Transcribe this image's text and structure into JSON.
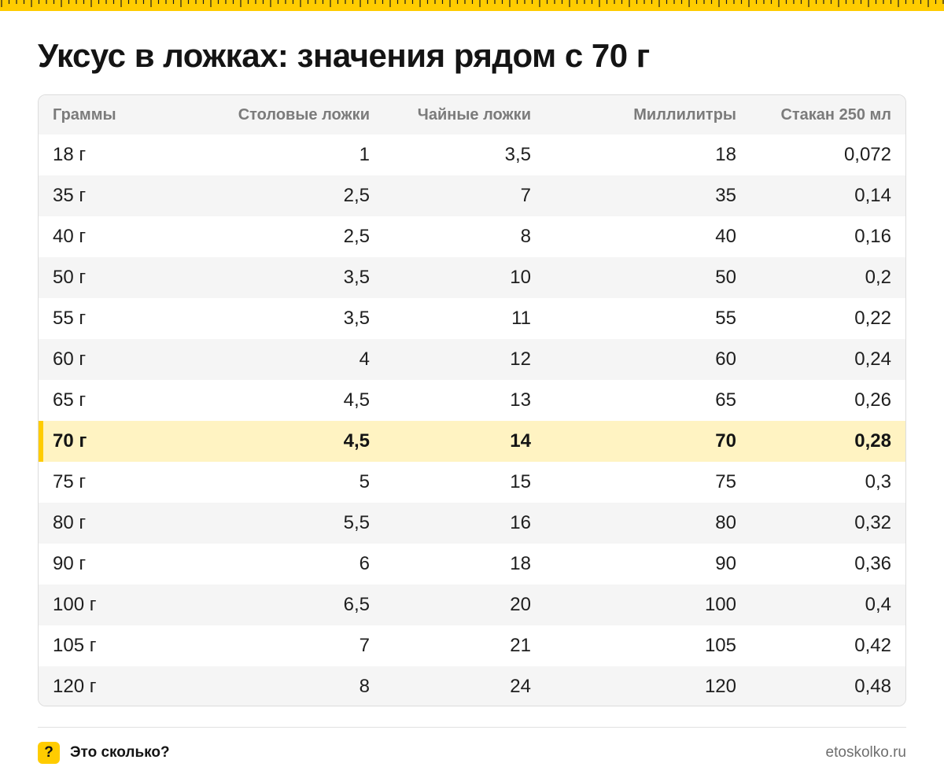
{
  "brand_color": "#ffcc00",
  "highlight_color": "#fff3c2",
  "title": "Уксус в ложках: значения рядом с 70 г",
  "chart_data": {
    "type": "table",
    "columns": [
      "Граммы",
      "Столовые ложки",
      "Чайные ложки",
      "Миллилитры",
      "Стакан 250 мл"
    ],
    "rows": [
      [
        "18 г",
        "1",
        "3,5",
        "18",
        "0,072"
      ],
      [
        "35 г",
        "2,5",
        "7",
        "35",
        "0,14"
      ],
      [
        "40 г",
        "2,5",
        "8",
        "40",
        "0,16"
      ],
      [
        "50 г",
        "3,5",
        "10",
        "50",
        "0,2"
      ],
      [
        "55 г",
        "3,5",
        "11",
        "55",
        "0,22"
      ],
      [
        "60 г",
        "4",
        "12",
        "60",
        "0,24"
      ],
      [
        "65 г",
        "4,5",
        "13",
        "65",
        "0,26"
      ],
      [
        "70 г",
        "4,5",
        "14",
        "70",
        "0,28"
      ],
      [
        "75 г",
        "5",
        "15",
        "75",
        "0,3"
      ],
      [
        "80 г",
        "5,5",
        "16",
        "80",
        "0,32"
      ],
      [
        "90 г",
        "6",
        "18",
        "90",
        "0,36"
      ],
      [
        "100 г",
        "6,5",
        "20",
        "100",
        "0,4"
      ],
      [
        "105 г",
        "7",
        "21",
        "105",
        "0,42"
      ],
      [
        "120 г",
        "8",
        "24",
        "120",
        "0,48"
      ]
    ],
    "highlighted_row": "70 г"
  },
  "footer": {
    "badge_icon": "question-icon",
    "badge_text": "?",
    "brand": "Это сколько?",
    "site": "etoskolko.ru"
  }
}
